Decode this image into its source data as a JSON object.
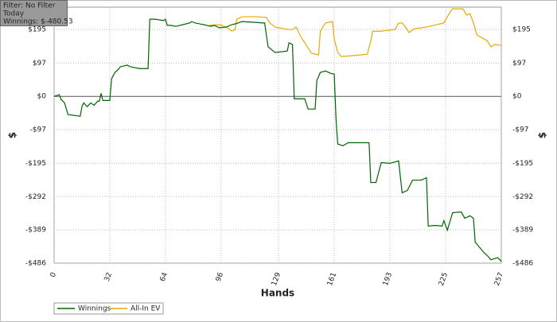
{
  "chart_data": {
    "type": "line",
    "annotations": [
      "Filter: No Filter",
      "Today",
      "Winnings: $-480.53"
    ],
    "x_label": "Hands",
    "y_label": "$",
    "xlim": [
      0,
      257
    ],
    "xticks": [
      0,
      32,
      64,
      96,
      129,
      161,
      193,
      225,
      257
    ],
    "ylim": [
      -486,
      260
    ],
    "yticks": [
      {
        "value": 195,
        "label": "$195"
      },
      {
        "value": 97,
        "label": "$97"
      },
      {
        "value": 0,
        "label": "$0"
      },
      {
        "value": -97,
        "label": "-$97"
      },
      {
        "value": -195,
        "label": "-$195"
      },
      {
        "value": -292,
        "label": "-$292"
      },
      {
        "value": -389,
        "label": "-$389"
      },
      {
        "value": -486,
        "label": "-$486"
      }
    ],
    "grid": true,
    "legend": "bottom-left",
    "series": [
      {
        "name": "Winnings",
        "color": "#006400",
        "x": [
          0,
          3,
          4,
          6,
          8,
          15,
          16,
          17,
          19,
          21,
          23,
          25,
          26,
          27,
          28,
          32,
          33,
          35,
          37,
          38,
          42,
          44,
          49,
          54,
          55,
          58,
          63,
          64,
          65,
          67,
          70,
          74,
          78,
          79,
          81,
          86,
          90,
          92,
          95,
          99,
          102,
          104,
          108,
          115,
          120,
          121,
          122,
          123,
          127,
          134,
          135,
          137,
          138,
          144,
          146,
          150,
          151,
          153,
          156,
          159,
          161,
          162,
          163,
          166,
          169,
          181,
          182,
          185,
          188,
          193,
          198,
          200,
          203,
          206,
          211,
          214,
          215,
          219,
          223,
          224,
          226,
          229,
          234,
          236,
          239,
          241,
          242,
          247,
          249,
          251,
          255,
          257
        ],
        "values": [
          0,
          5,
          -9,
          -19,
          -53,
          -58,
          -30,
          -19,
          -30,
          -19,
          -26,
          -14,
          -14,
          9,
          -12,
          -12,
          51,
          70,
          79,
          86,
          91,
          86,
          81,
          81,
          225,
          225,
          221,
          225,
          207,
          207,
          204,
          209,
          214,
          218,
          214,
          209,
          204,
          207,
          200,
          202,
          209,
          211,
          218,
          216,
          214,
          214,
          179,
          144,
          128,
          132,
          156,
          151,
          -7,
          -7,
          -37,
          -37,
          46,
          70,
          74,
          67,
          65,
          -65,
          -139,
          -144,
          -135,
          -135,
          -251,
          -251,
          -193,
          -195,
          -188,
          -281,
          -274,
          -244,
          -244,
          -237,
          -378,
          -376,
          -378,
          -362,
          -390,
          -339,
          -337,
          -355,
          -348,
          -355,
          -425,
          -455,
          -464,
          -476,
          -470,
          -481
        ]
      },
      {
        "name": "All-In EV",
        "color": "#e8a900",
        "x": [
          89,
          95,
          99,
          102,
          104,
          105,
          108,
          116,
          122,
          124,
          127,
          134,
          137,
          139,
          142,
          145,
          148,
          152,
          153,
          156,
          160,
          161,
          163,
          165,
          177,
          180,
          182,
          183,
          188,
          196,
          198,
          200,
          202,
          204,
          207,
          214,
          224,
          227,
          229,
          232,
          235,
          237,
          239,
          241,
          243,
          249,
          251,
          253,
          257
        ],
        "values": [
          207,
          209,
          202,
          190,
          195,
          225,
          232,
          232,
          230,
          214,
          202,
          195,
          195,
          202,
          172,
          149,
          125,
          121,
          190,
          214,
          218,
          167,
          128,
          116,
          121,
          123,
          162,
          190,
          190,
          195,
          214,
          214,
          202,
          186,
          197,
          202,
          214,
          241,
          255,
          255,
          255,
          237,
          241,
          214,
          179,
          162,
          144,
          151,
          149
        ]
      }
    ]
  }
}
